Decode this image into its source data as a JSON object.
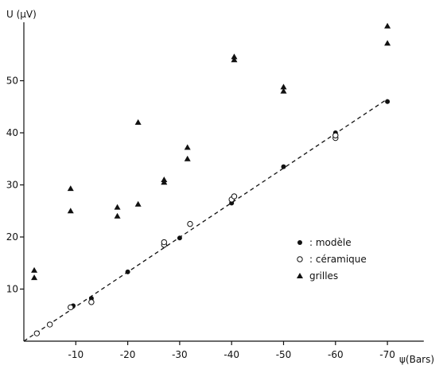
{
  "chart_data": {
    "type": "scatter",
    "title": "",
    "xlabel": "ψ(Bars)",
    "ylabel": "U (µV)",
    "xlim": [
      0,
      -77
    ],
    "ylim": [
      0,
      60
    ],
    "x_ticks": [
      -10,
      -20,
      -30,
      -40,
      -50,
      -60,
      -70
    ],
    "x_tick_labels": [
      "-10",
      "-20",
      "-30",
      "-40",
      "-50",
      "-60",
      "-70"
    ],
    "y_ticks": [
      10,
      20,
      30,
      40,
      50
    ],
    "y_tick_labels": [
      "10",
      "20",
      "30",
      "40",
      "50"
    ],
    "grid": false,
    "legend_position": "right",
    "series": [
      {
        "name": ": modèle",
        "marker": "filled-circle",
        "color": "#111111",
        "points": [
          {
            "x": -9.5,
            "y": 6.8
          },
          {
            "x": -13,
            "y": 8.2
          },
          {
            "x": -20,
            "y": 13.3
          },
          {
            "x": -30,
            "y": 19.8
          },
          {
            "x": -40,
            "y": 26.5
          },
          {
            "x": -50,
            "y": 33.5
          },
          {
            "x": -60,
            "y": 40
          },
          {
            "x": -70,
            "y": 46
          }
        ]
      },
      {
        "name": ": céramique",
        "marker": "open-circle",
        "color": "#111111",
        "points": [
          {
            "x": -2.5,
            "y": 1.5
          },
          {
            "x": -5,
            "y": 3.2
          },
          {
            "x": -9,
            "y": 6.5
          },
          {
            "x": -13,
            "y": 7.5
          },
          {
            "x": -27,
            "y": 18.5
          },
          {
            "x": -27,
            "y": 19
          },
          {
            "x": -32,
            "y": 22.5
          },
          {
            "x": -40,
            "y": 27.2
          },
          {
            "x": -40.5,
            "y": 27.8
          },
          {
            "x": -60,
            "y": 39
          },
          {
            "x": -60,
            "y": 39.5
          }
        ]
      },
      {
        "name": "grilles",
        "marker": "filled-triangle",
        "color": "#111111",
        "points": [
          {
            "x": -2,
            "y": 12.2
          },
          {
            "x": -2,
            "y": 13.6
          },
          {
            "x": -9,
            "y": 25
          },
          {
            "x": -9,
            "y": 29.3
          },
          {
            "x": -18,
            "y": 24
          },
          {
            "x": -18,
            "y": 25.7
          },
          {
            "x": -22,
            "y": 26.3
          },
          {
            "x": -22,
            "y": 42
          },
          {
            "x": -27,
            "y": 30.5
          },
          {
            "x": -27,
            "y": 31
          },
          {
            "x": -31.5,
            "y": 35
          },
          {
            "x": -31.5,
            "y": 37.2
          },
          {
            "x": -40.5,
            "y": 54
          },
          {
            "x": -40.5,
            "y": 54.6
          },
          {
            "x": -50,
            "y": 48
          },
          {
            "x": -50,
            "y": 48.8
          },
          {
            "x": -70,
            "y": 57.2
          },
          {
            "x": -70,
            "y": 60.5
          }
        ]
      }
    ],
    "fit_line": {
      "style": "dashed",
      "x": [
        0,
        -70
      ],
      "y": [
        0,
        46.5
      ]
    }
  }
}
